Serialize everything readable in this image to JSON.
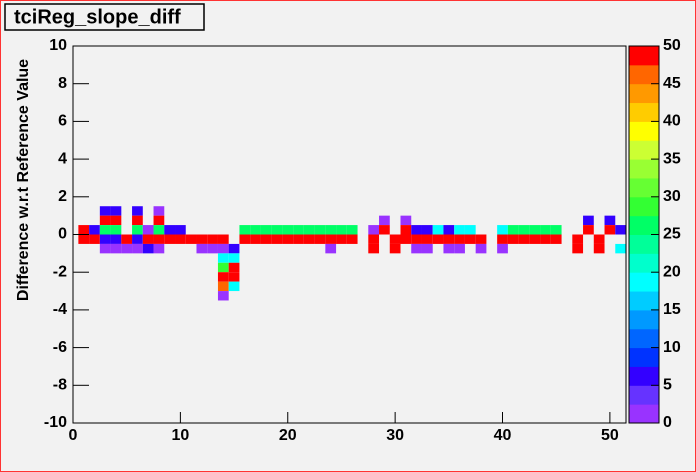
{
  "chart_data": {
    "type": "heatmap",
    "title": "tciReg_slope_diff",
    "y_label": "Difference w.r.t Reference Value",
    "xlim": [
      0,
      51.5
    ],
    "xticks": [
      0,
      10,
      20,
      30,
      40,
      50
    ],
    "ylim": [
      -10,
      10
    ],
    "yticks": [
      -10,
      -8,
      -6,
      -4,
      -2,
      0,
      2,
      4,
      6,
      8,
      10
    ],
    "zlim": [
      0,
      50
    ],
    "zticks": [
      0,
      5,
      10,
      15,
      20,
      25,
      30,
      35,
      40,
      45,
      50
    ],
    "palette": [
      "#9933ff",
      "#6633ff",
      "#3300ff",
      "#0033ff",
      "#0066ff",
      "#0099ff",
      "#00ccff",
      "#00ffff",
      "#00ffcc",
      "#00ff99",
      "#00ff66",
      "#33ff33",
      "#66ff33",
      "#99ff33",
      "#ccff33",
      "#ffff00",
      "#ffcc00",
      "#ff9900",
      "#ff6600",
      "#ff0000"
    ],
    "cells": [
      [
        1,
        0.25,
        50
      ],
      [
        1,
        -0.25,
        50
      ],
      [
        2,
        0.25,
        6
      ],
      [
        2,
        -0.25,
        50
      ],
      [
        3,
        1.25,
        6
      ],
      [
        3,
        0.75,
        50
      ],
      [
        3,
        0.25,
        25
      ],
      [
        3,
        -0.25,
        6
      ],
      [
        3,
        -0.75,
        1
      ],
      [
        4,
        1.25,
        6
      ],
      [
        4,
        0.75,
        50
      ],
      [
        4,
        0.25,
        25
      ],
      [
        4,
        -0.25,
        6
      ],
      [
        4,
        -0.75,
        1
      ],
      [
        5,
        -0.25,
        50
      ],
      [
        5,
        -0.75,
        1
      ],
      [
        6,
        1.25,
        6
      ],
      [
        6,
        0.75,
        50
      ],
      [
        6,
        0.25,
        25
      ],
      [
        6,
        -0.25,
        6
      ],
      [
        6,
        -0.75,
        1
      ],
      [
        7,
        0.25,
        1
      ],
      [
        7,
        -0.25,
        50
      ],
      [
        7,
        -0.75,
        6
      ],
      [
        8,
        1.25,
        1
      ],
      [
        8,
        0.75,
        50
      ],
      [
        8,
        0.25,
        25
      ],
      [
        8,
        -0.25,
        50
      ],
      [
        8,
        -0.75,
        1
      ],
      [
        9,
        0.25,
        6
      ],
      [
        9,
        -0.25,
        50
      ],
      [
        10,
        0.25,
        6
      ],
      [
        10,
        -0.25,
        50
      ],
      [
        11,
        -0.25,
        50
      ],
      [
        12,
        -0.25,
        50
      ],
      [
        12,
        -0.75,
        1
      ],
      [
        13,
        -0.25,
        50
      ],
      [
        13,
        -0.75,
        1
      ],
      [
        14,
        -0.25,
        50
      ],
      [
        14,
        -0.75,
        1
      ],
      [
        14,
        -1.25,
        18
      ],
      [
        14,
        -1.75,
        29
      ],
      [
        14,
        -2.25,
        50
      ],
      [
        14,
        -2.75,
        45
      ],
      [
        14,
        -3.25,
        1
      ],
      [
        15,
        -0.75,
        6
      ],
      [
        15,
        -1.25,
        18
      ],
      [
        15,
        -1.75,
        50
      ],
      [
        15,
        -2.25,
        50
      ],
      [
        15,
        -2.75,
        18
      ],
      [
        16,
        0.25,
        25
      ],
      [
        16,
        -0.25,
        50
      ],
      [
        17,
        0.25,
        25
      ],
      [
        17,
        -0.25,
        50
      ],
      [
        18,
        0.25,
        25
      ],
      [
        18,
        -0.25,
        50
      ],
      [
        19,
        0.25,
        25
      ],
      [
        19,
        -0.25,
        50
      ],
      [
        20,
        0.25,
        25
      ],
      [
        20,
        -0.25,
        50
      ],
      [
        21,
        0.25,
        25
      ],
      [
        21,
        -0.25,
        50
      ],
      [
        22,
        0.25,
        25
      ],
      [
        22,
        -0.25,
        50
      ],
      [
        23,
        0.25,
        25
      ],
      [
        23,
        -0.25,
        50
      ],
      [
        24,
        0.25,
        25
      ],
      [
        24,
        -0.25,
        50
      ],
      [
        24,
        -0.75,
        1
      ],
      [
        25,
        0.25,
        25
      ],
      [
        25,
        -0.25,
        50
      ],
      [
        26,
        0.25,
        25
      ],
      [
        26,
        -0.25,
        50
      ],
      [
        28,
        0.25,
        1
      ],
      [
        28,
        -0.25,
        50
      ],
      [
        28,
        -0.75,
        50
      ],
      [
        29,
        0.75,
        1
      ],
      [
        29,
        0.25,
        50
      ],
      [
        30,
        -0.25,
        50
      ],
      [
        30,
        -0.75,
        50
      ],
      [
        31,
        0.75,
        1
      ],
      [
        31,
        0.25,
        50
      ],
      [
        31,
        -0.25,
        50
      ],
      [
        32,
        0.25,
        6
      ],
      [
        32,
        -0.25,
        50
      ],
      [
        32,
        -0.75,
        1
      ],
      [
        33,
        0.25,
        6
      ],
      [
        33,
        -0.25,
        50
      ],
      [
        33,
        -0.75,
        1
      ],
      [
        34,
        0.25,
        18
      ],
      [
        34,
        -0.25,
        50
      ],
      [
        35,
        0.25,
        6
      ],
      [
        35,
        -0.25,
        50
      ],
      [
        35,
        -0.75,
        1
      ],
      [
        36,
        0.25,
        18
      ],
      [
        36,
        -0.25,
        50
      ],
      [
        36,
        -0.75,
        1
      ],
      [
        37,
        0.25,
        18
      ],
      [
        37,
        -0.25,
        50
      ],
      [
        38,
        -0.25,
        50
      ],
      [
        38,
        -0.75,
        1
      ],
      [
        40,
        0.25,
        18
      ],
      [
        40,
        -0.25,
        50
      ],
      [
        40,
        -0.75,
        1
      ],
      [
        41,
        0.25,
        25
      ],
      [
        41,
        -0.25,
        50
      ],
      [
        42,
        0.25,
        25
      ],
      [
        42,
        -0.25,
        50
      ],
      [
        43,
        0.25,
        25
      ],
      [
        43,
        -0.25,
        50
      ],
      [
        44,
        0.25,
        25
      ],
      [
        44,
        -0.25,
        50
      ],
      [
        45,
        0.25,
        25
      ],
      [
        45,
        -0.25,
        50
      ],
      [
        47,
        -0.25,
        50
      ],
      [
        47,
        -0.75,
        50
      ],
      [
        48,
        0.75,
        6
      ],
      [
        48,
        0.25,
        50
      ],
      [
        49,
        -0.25,
        50
      ],
      [
        49,
        -0.75,
        50
      ],
      [
        50,
        0.75,
        6
      ],
      [
        50,
        0.25,
        50
      ],
      [
        51,
        0.25,
        6
      ],
      [
        51,
        -0.75,
        18
      ]
    ]
  }
}
